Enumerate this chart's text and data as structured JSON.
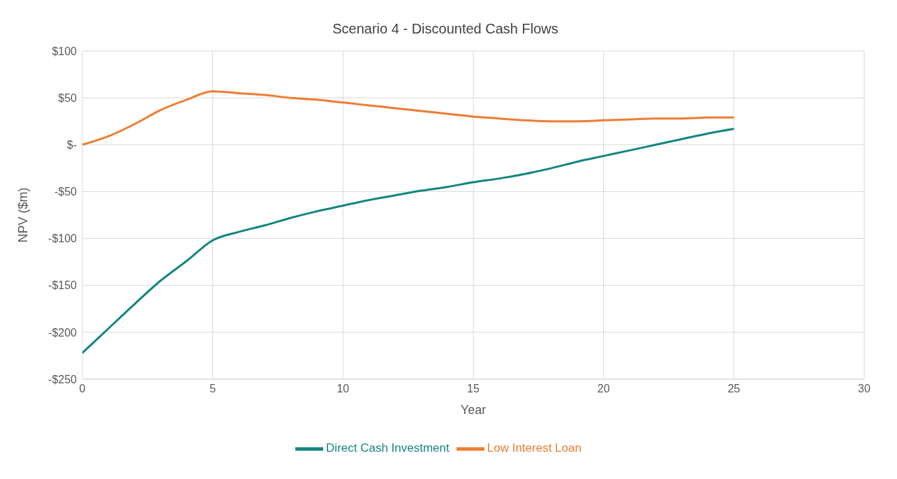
{
  "chart_data": {
    "type": "line",
    "title": "Scenario 4 - Discounted Cash Flows",
    "xlabel": "Year",
    "ylabel": "NPV ($m)",
    "x": [
      0,
      1,
      2,
      3,
      4,
      5,
      6,
      7,
      8,
      9,
      10,
      11,
      12,
      13,
      14,
      15,
      16,
      17,
      18,
      19,
      20,
      21,
      22,
      23,
      24,
      25
    ],
    "series": [
      {
        "name": "Direct Cash Investment",
        "color": "#138580",
        "values": [
          -222,
          -196,
          -170,
          -145,
          -124,
          -102,
          -93,
          -86,
          -78,
          -71,
          -65,
          -59,
          -54,
          -49,
          -45,
          -40,
          -36,
          -31,
          -25,
          -18,
          -12,
          -6,
          0,
          6,
          12,
          17
        ]
      },
      {
        "name": "Low Interest Loan",
        "color": "#ed7d31",
        "values": [
          0,
          9,
          22,
          37,
          48,
          57,
          55,
          53,
          50,
          48,
          45,
          42,
          39,
          36,
          33,
          30,
          28,
          26,
          25,
          25,
          26,
          27,
          28,
          28,
          29,
          29
        ]
      }
    ],
    "xlim": [
      0,
      30
    ],
    "xticks": [
      0,
      5,
      10,
      15,
      20,
      25,
      30
    ],
    "ylim": [
      -250,
      100
    ],
    "yticks": [
      {
        "value": 100,
        "label": "$100"
      },
      {
        "value": 50,
        "label": "$50"
      },
      {
        "value": 0,
        "label": "$-"
      },
      {
        "value": -50,
        "label": "-$50"
      },
      {
        "value": -100,
        "label": "-$100"
      },
      {
        "value": -150,
        "label": "-$150"
      },
      {
        "value": -200,
        "label": "-$200"
      },
      {
        "value": -250,
        "label": "-$250"
      }
    ],
    "grid": true,
    "legend": "bottom",
    "marker": "none",
    "line_style": "solid"
  }
}
